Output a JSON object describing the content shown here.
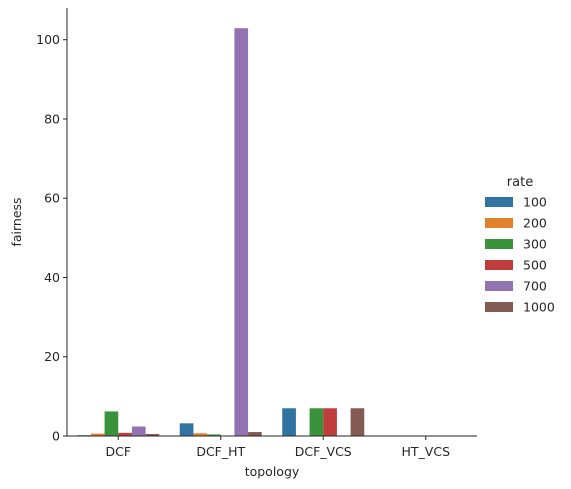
{
  "chart_data": {
    "type": "bar",
    "xlabel": "topology",
    "ylabel": "fairness",
    "categories": [
      "DCF",
      "DCF_HT",
      "DCF_VCS",
      "HT_VCS"
    ],
    "ylim": [
      0,
      108
    ],
    "yticks": [
      0,
      20,
      40,
      60,
      80,
      100
    ],
    "legend": {
      "title": "rate",
      "position": "right"
    },
    "grid": false,
    "series": [
      {
        "name": "100",
        "color": "#3274a1",
        "values": [
          0.2,
          3.2,
          7.0,
          0
        ]
      },
      {
        "name": "200",
        "color": "#e1812c",
        "values": [
          0.6,
          0.7,
          0,
          0
        ]
      },
      {
        "name": "300",
        "color": "#3a923a",
        "values": [
          6.2,
          0.4,
          7.0,
          0
        ]
      },
      {
        "name": "500",
        "color": "#c03d3e",
        "values": [
          0.8,
          0,
          7.0,
          0
        ]
      },
      {
        "name": "700",
        "color": "#9372b2",
        "values": [
          2.4,
          102.9,
          0,
          0
        ]
      },
      {
        "name": "1000",
        "color": "#845b53",
        "values": [
          0.5,
          1.0,
          7.0,
          0
        ]
      }
    ]
  }
}
